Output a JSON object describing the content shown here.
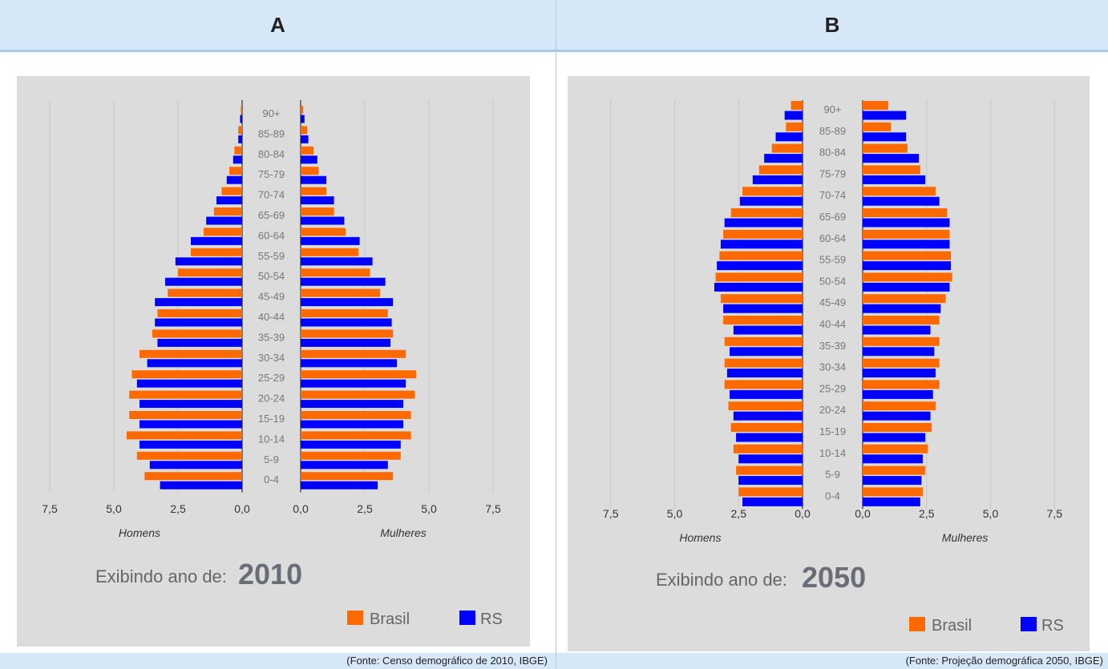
{
  "header": {
    "left": "A",
    "right": "B"
  },
  "footer": {
    "left": "(Fonte: Censo demográfico de 2010, IBGE)",
    "right": "(Fonte: Projeção demográfica 2050, IBGE)"
  },
  "colors": {
    "brasil": "#ff6a00",
    "rs": "#0000ff",
    "panel_bg": "#dcdcdc",
    "header_bg": "#d6e8f7"
  },
  "chart_data": [
    {
      "type": "bar",
      "orientation": "population-pyramid",
      "xlim": [
        0,
        7.5
      ],
      "ticks": [
        "7,5",
        "5,0",
        "2,5",
        "0,0",
        "0,0",
        "2,5",
        "5,0",
        "7,5"
      ],
      "left_label": "Homens",
      "right_label": "Mulheres",
      "year_prefix": "Exibindo ano de:",
      "year": "2010",
      "legend": [
        "Brasil",
        "RS"
      ],
      "categories": [
        "90+",
        "85-89",
        "80-84",
        "75-79",
        "70-74",
        "65-69",
        "60-64",
        "55-59",
        "50-54",
        "45-49",
        "40-44",
        "35-39",
        "30-34",
        "25-29",
        "20-24",
        "15-19",
        "10-14",
        "5-9",
        "0-4"
      ],
      "series": [
        {
          "name": "Brasil",
          "side": "Homens",
          "values": [
            0.05,
            0.15,
            0.3,
            0.5,
            0.8,
            1.1,
            1.5,
            2.0,
            2.5,
            2.9,
            3.3,
            3.5,
            4.0,
            4.3,
            4.4,
            4.4,
            4.5,
            4.1,
            3.8
          ]
        },
        {
          "name": "RS",
          "side": "Homens",
          "values": [
            0.08,
            0.15,
            0.35,
            0.6,
            1.0,
            1.4,
            2.0,
            2.6,
            3.0,
            3.4,
            3.4,
            3.3,
            3.7,
            4.1,
            4.0,
            4.0,
            4.0,
            3.6,
            3.2
          ]
        },
        {
          "name": "Brasil",
          "side": "Mulheres",
          "values": [
            0.1,
            0.25,
            0.5,
            0.7,
            1.0,
            1.3,
            1.75,
            2.25,
            2.7,
            3.1,
            3.4,
            3.6,
            4.1,
            4.5,
            4.45,
            4.3,
            4.3,
            3.9,
            3.6
          ]
        },
        {
          "name": "RS",
          "side": "Mulheres",
          "values": [
            0.15,
            0.3,
            0.65,
            1.0,
            1.3,
            1.7,
            2.3,
            2.8,
            3.3,
            3.6,
            3.55,
            3.5,
            3.75,
            4.1,
            4.0,
            4.0,
            3.9,
            3.4,
            3.0
          ]
        }
      ]
    },
    {
      "type": "bar",
      "orientation": "population-pyramid",
      "xlim": [
        0,
        7.5
      ],
      "ticks": [
        "7,5",
        "5,0",
        "2,5",
        "0,0",
        "0,0",
        "2,5",
        "5,0",
        "7,5"
      ],
      "left_label": "Homens",
      "right_label": "Mulheres",
      "year_prefix": "Exibindo ano de:",
      "year": "2050",
      "legend": [
        "Brasil",
        "RS"
      ],
      "categories": [
        "90+",
        "85-89",
        "80-84",
        "75-79",
        "70-74",
        "65-69",
        "60-64",
        "55-59",
        "50-54",
        "45-49",
        "40-44",
        "35-39",
        "30-34",
        "25-29",
        "20-24",
        "15-19",
        "10-14",
        "5-9",
        "0-4"
      ],
      "series": [
        {
          "name": "Brasil",
          "side": "Homens",
          "values": [
            0.45,
            0.65,
            1.2,
            1.7,
            2.35,
            2.8,
            3.1,
            3.25,
            3.4,
            3.2,
            3.1,
            3.05,
            3.05,
            3.05,
            2.9,
            2.8,
            2.7,
            2.6,
            2.5
          ]
        },
        {
          "name": "RS",
          "side": "Homens",
          "values": [
            0.7,
            1.05,
            1.5,
            1.95,
            2.45,
            3.05,
            3.2,
            3.35,
            3.45,
            3.1,
            2.7,
            2.85,
            2.95,
            2.85,
            2.7,
            2.6,
            2.5,
            2.5,
            2.35
          ]
        },
        {
          "name": "Brasil",
          "side": "Mulheres",
          "values": [
            1.0,
            1.1,
            1.75,
            2.25,
            2.85,
            3.3,
            3.4,
            3.45,
            3.5,
            3.25,
            3.0,
            3.0,
            3.0,
            3.0,
            2.85,
            2.7,
            2.55,
            2.45,
            2.35
          ]
        },
        {
          "name": "RS",
          "side": "Mulheres",
          "values": [
            1.7,
            1.7,
            2.2,
            2.45,
            3.0,
            3.4,
            3.4,
            3.45,
            3.4,
            3.05,
            2.65,
            2.8,
            2.85,
            2.75,
            2.65,
            2.45,
            2.35,
            2.3,
            2.25
          ]
        }
      ]
    }
  ]
}
